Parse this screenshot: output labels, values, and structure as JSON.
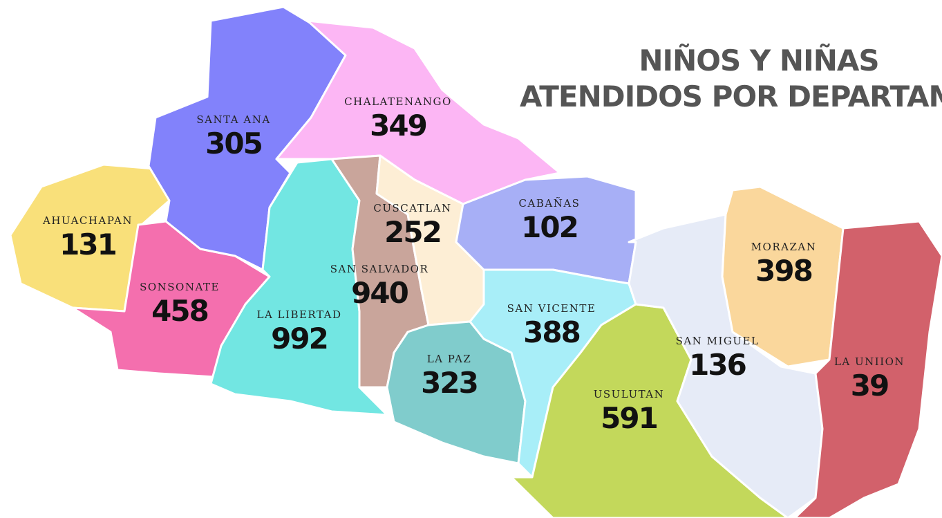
{
  "title": [
    "NIÑOS Y NIÑAS",
    "ATENDIDOS POR DEPARTAMEN"
  ],
  "departments": [
    {
      "name": "AHUACHAPAN",
      "value": "131",
      "color": "#f9e07a"
    },
    {
      "name": "SONSONATE",
      "value": "458",
      "color": "#f46fae"
    },
    {
      "name": "SANTA ANA",
      "value": "305",
      "color": "#8282fb"
    },
    {
      "name": "CHALATENANGO",
      "value": "349",
      "color": "#fcb6f4"
    },
    {
      "name": "LA LIBERTAD",
      "value": "992",
      "color": "#72e6e2"
    },
    {
      "name": "SAN SALVADOR",
      "value": "940",
      "color": "#c9a59b"
    },
    {
      "name": "CUSCATLAN",
      "value": "252",
      "color": "#fdeed5"
    },
    {
      "name": "CABAÑAS",
      "value": "102",
      "color": "#a7aff6"
    },
    {
      "name": "LA PAZ",
      "value": "323",
      "color": "#80cccc"
    },
    {
      "name": "SAN VICENTE",
      "value": "388",
      "color": "#a8eef8"
    },
    {
      "name": "USULUTAN",
      "value": "591",
      "color": "#c3d85b"
    },
    {
      "name": "SAN MIGUEL",
      "value": "136",
      "color": "#e6ebf7"
    },
    {
      "name": "MORAZAN",
      "value": "398",
      "color": "#fad79c"
    },
    {
      "name": "LA UNIION",
      "value": "39",
      "color": "#d2616b"
    }
  ]
}
